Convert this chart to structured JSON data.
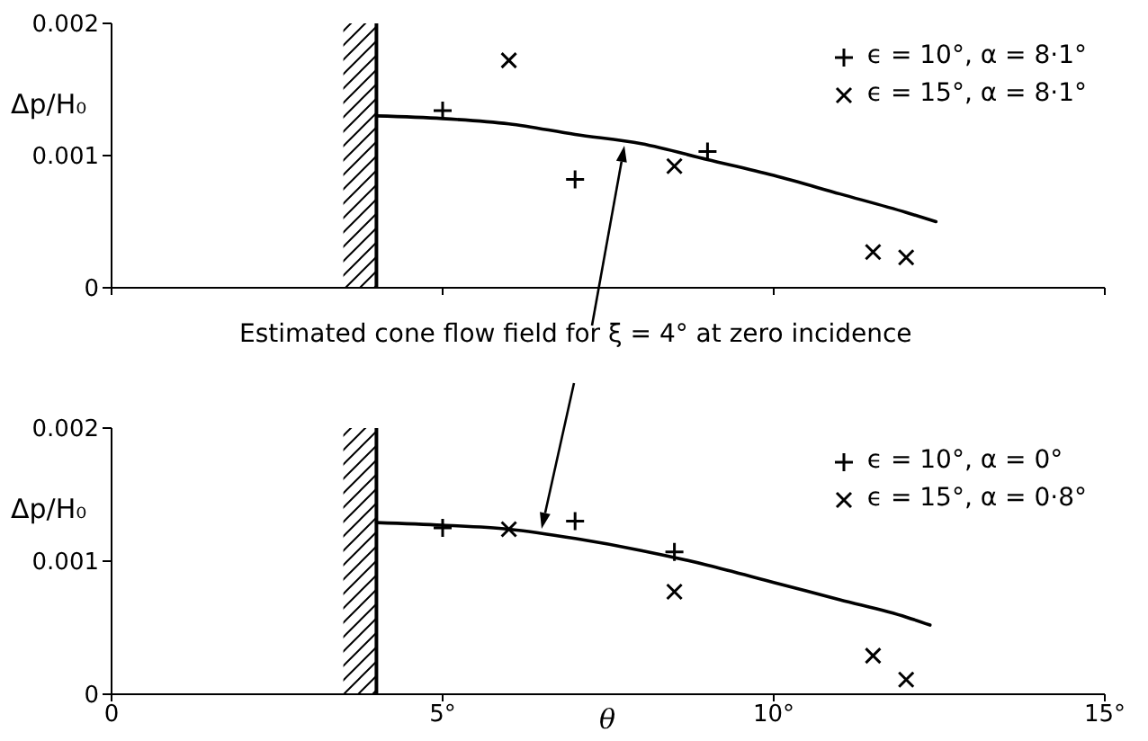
{
  "chart_data": [
    {
      "type": "scatter",
      "ylabel": "Δp/H₀",
      "annotations": [
        "Estimated cone flow field for ξ = 4° at zero incidence"
      ],
      "xlim": [
        0,
        15
      ],
      "xticks": [
        0,
        5,
        10,
        15
      ],
      "ylim": [
        0,
        0.002
      ],
      "yticks": [
        0,
        0.001,
        0.002
      ],
      "tick_labels": "y",
      "legend": "top right",
      "bands": [
        {
          "axis": "x",
          "from": 3.5,
          "to": 4
        }
      ],
      "ref_lines": [
        {
          "axis": "x",
          "value": 4
        }
      ],
      "series": [
        {
          "name": "ϵ = 10°, α = 8·1°",
          "marker": "plus",
          "color": "#000000",
          "x": [
            5,
            7,
            9
          ],
          "values": [
            0.00134,
            0.00082,
            0.00103
          ]
        },
        {
          "name": "ϵ = 15°, α = 8·1°",
          "marker": "cross",
          "color": "#000000",
          "x": [
            6,
            8.5,
            11.5,
            12
          ],
          "values": [
            0.00172,
            0.00092,
            0.00027,
            0.00023
          ]
        },
        {
          "type": "line",
          "marker": "none",
          "color": "#000000",
          "x": [
            4,
            5,
            6,
            7,
            8,
            9,
            10,
            11,
            12,
            12.45
          ],
          "values": [
            0.0013,
            0.00128,
            0.00124,
            0.00116,
            0.00109,
            0.00097,
            0.00085,
            0.00071,
            0.00057,
            0.0005
          ]
        }
      ]
    },
    {
      "type": "scatter",
      "ylabel": "Δp/H₀",
      "xlabel": "θ",
      "xlim": [
        0,
        15
      ],
      "xticks": [
        0,
        {
          "value": 5,
          "label": "5°"
        },
        {
          "value": 10,
          "label": "10°"
        },
        {
          "value": 15,
          "label": "15°"
        }
      ],
      "ylim": [
        0,
        0.002
      ],
      "yticks": [
        0,
        0.001,
        0.002
      ],
      "legend": "top right",
      "bands": [
        {
          "axis": "x",
          "from": 3.5,
          "to": 4
        }
      ],
      "ref_lines": [
        {
          "axis": "x",
          "value": 4
        }
      ],
      "series": [
        {
          "name": "ϵ = 10°, α = 0°",
          "marker": "plus",
          "color": "#000000",
          "x": [
            5,
            7,
            8.5
          ],
          "values": [
            0.00125,
            0.0013,
            0.00107
          ]
        },
        {
          "name": "ϵ = 15°, α = 0·8°",
          "marker": "cross",
          "color": "#000000",
          "x": [
            6,
            8.5,
            11.5,
            12
          ],
          "values": [
            0.00124,
            0.00077,
            0.00029,
            0.00011
          ]
        },
        {
          "type": "line",
          "marker": "none",
          "color": "#000000",
          "x": [
            4,
            5,
            6,
            7,
            8,
            9,
            10,
            11,
            12,
            12.36
          ],
          "values": [
            0.00129,
            0.00127,
            0.00124,
            0.00117,
            0.00108,
            0.00097,
            0.00084,
            0.00071,
            0.00058,
            0.00052
          ]
        }
      ]
    }
  ]
}
